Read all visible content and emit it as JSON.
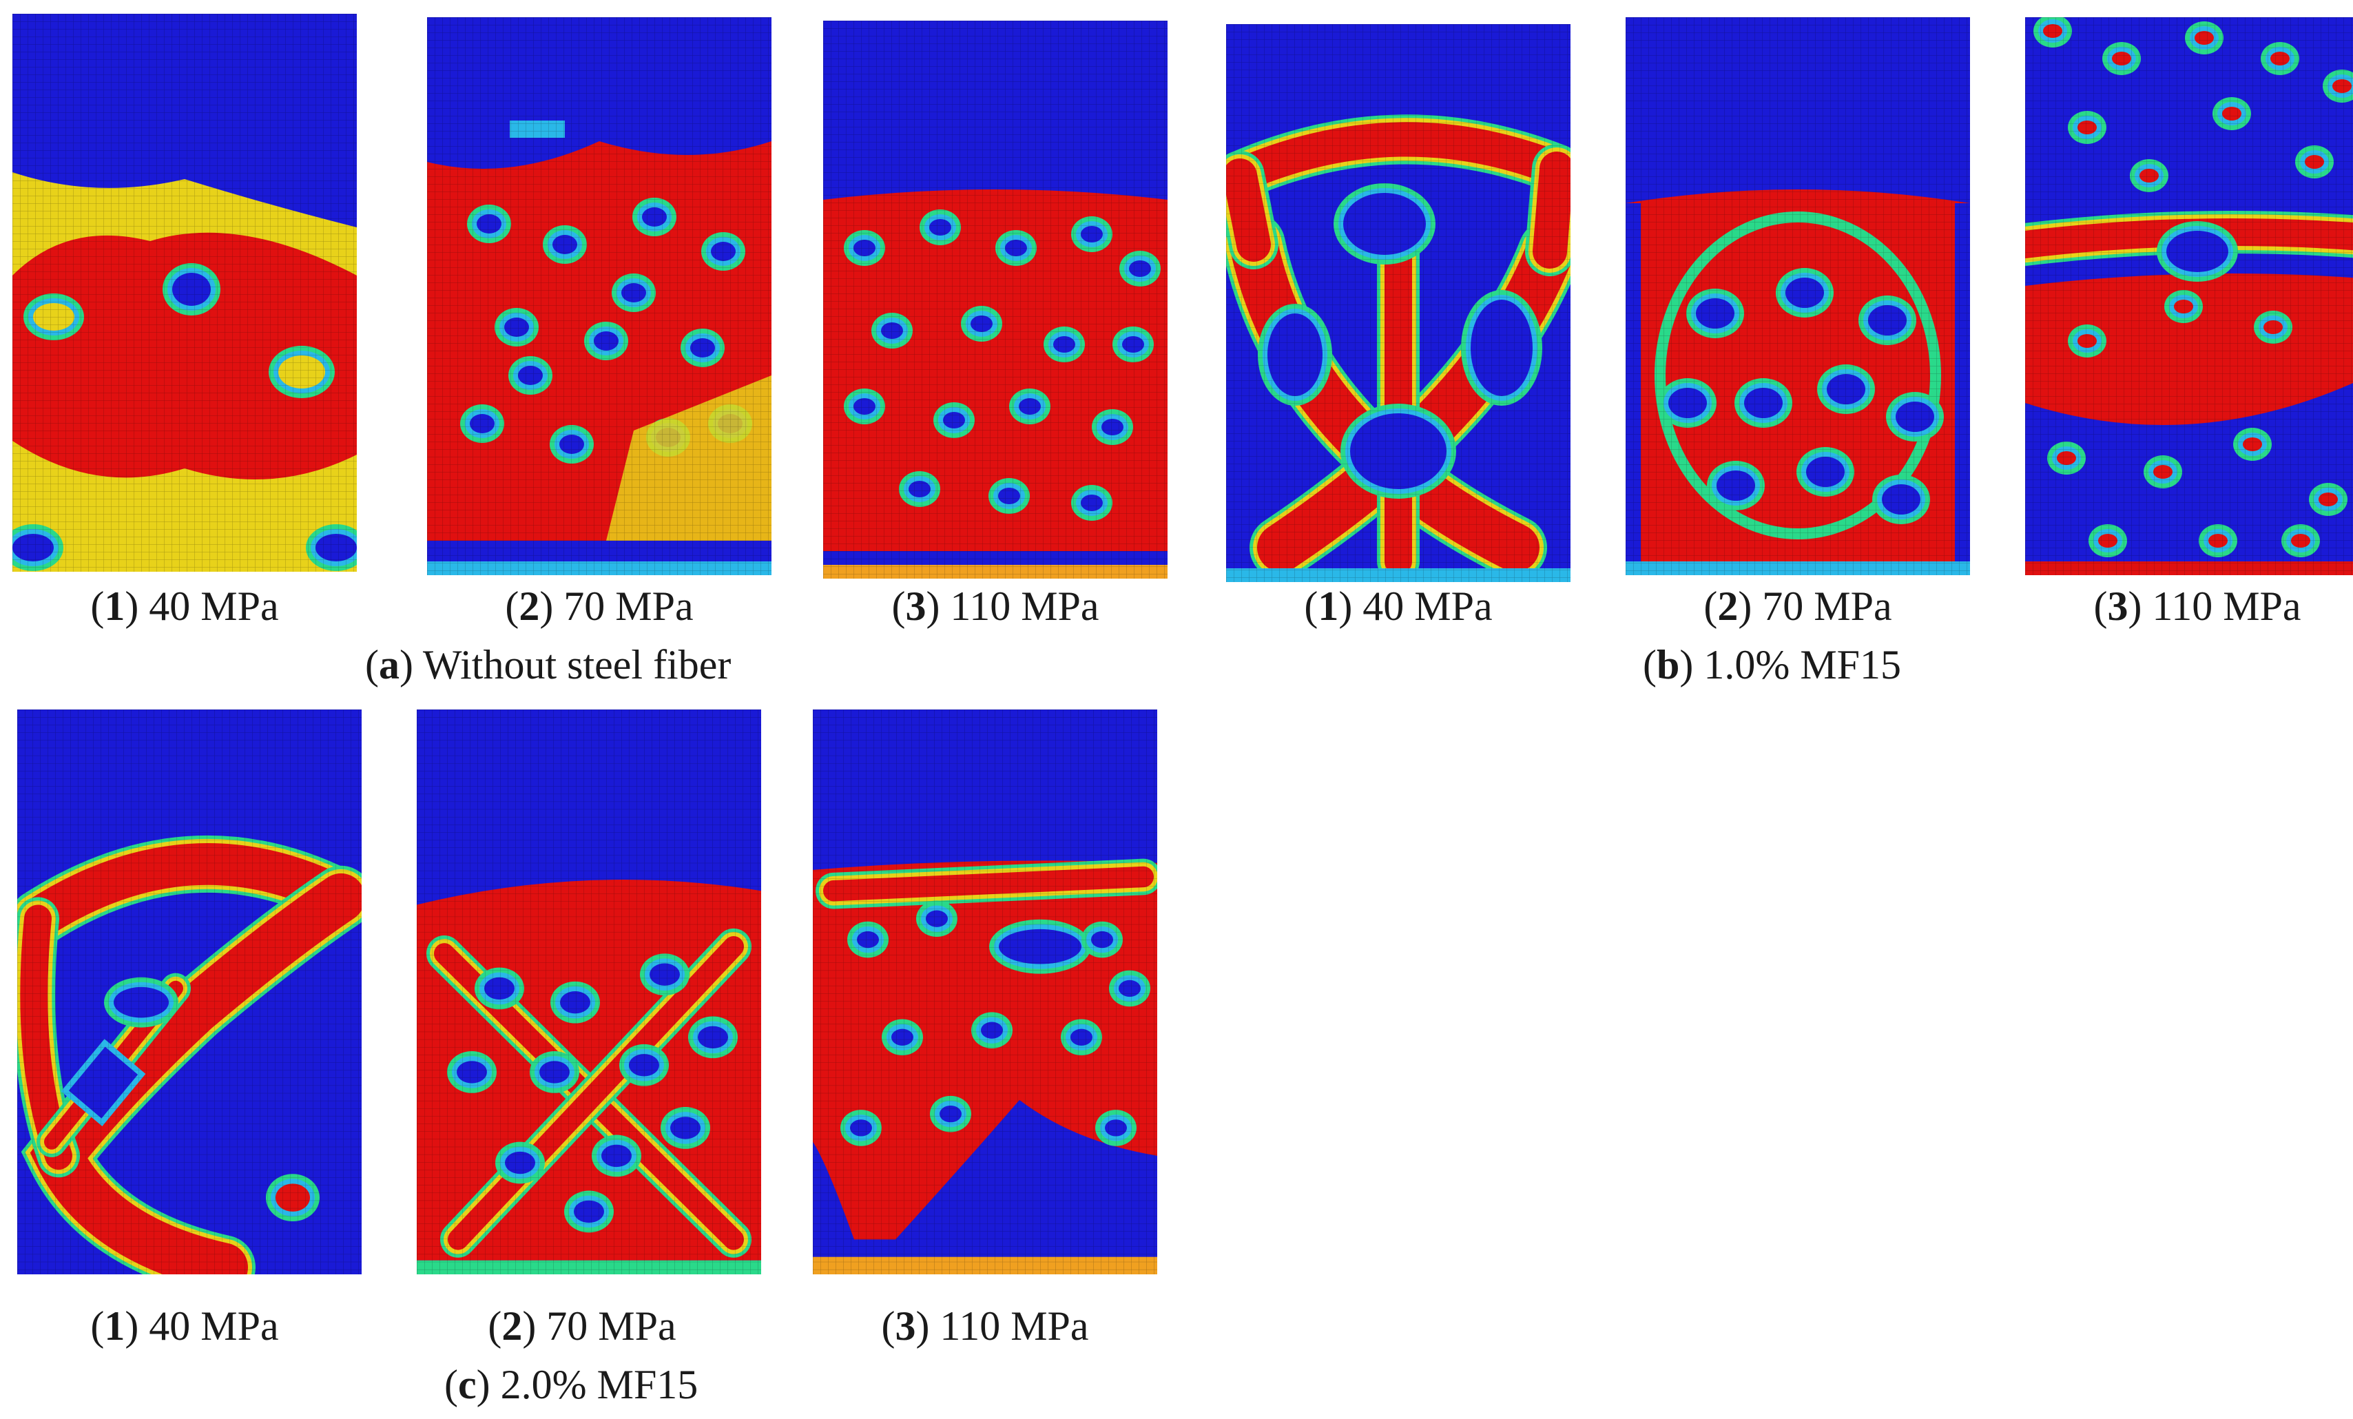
{
  "figure": {
    "rows": [
      {
        "panels": [
          {
            "id": "a1",
            "num": "1",
            "text": "40 MPa",
            "pattern": "bulge-yellow"
          },
          {
            "id": "a2",
            "num": "2",
            "text": "70 MPa",
            "pattern": "red-spotty"
          },
          {
            "id": "a3",
            "num": "3",
            "text": "110 MPa",
            "pattern": "red-dense"
          },
          {
            "id": "b1",
            "num": "1",
            "text": "40 MPa",
            "pattern": "x-band"
          },
          {
            "id": "b2",
            "num": "2",
            "text": "70 MPa",
            "pattern": "ring"
          },
          {
            "id": "b3",
            "num": "3",
            "text": "110 MPa",
            "pattern": "scattered"
          }
        ],
        "groups": [
          {
            "letter": "a",
            "text": "Without steel fiber"
          },
          {
            "letter": "b",
            "text": "1.0% MF15"
          }
        ]
      },
      {
        "panels": [
          {
            "id": "c1",
            "num": "1",
            "text": "40 MPa",
            "pattern": "diagonal-loop"
          },
          {
            "id": "c2",
            "num": "2",
            "text": "70 MPa",
            "pattern": "cross-hatch"
          },
          {
            "id": "c3",
            "num": "3",
            "text": "110 MPa",
            "pattern": "mid-band"
          }
        ],
        "groups": [
          {
            "letter": "c",
            "text": "2.0% MF15"
          }
        ]
      }
    ],
    "colors": {
      "blue": "#1a1ad6",
      "red": "#e01010",
      "yellow": "#e8d21a",
      "green": "#2ad98a",
      "cyan": "#2ab8e8",
      "orange": "#f0a020"
    }
  }
}
